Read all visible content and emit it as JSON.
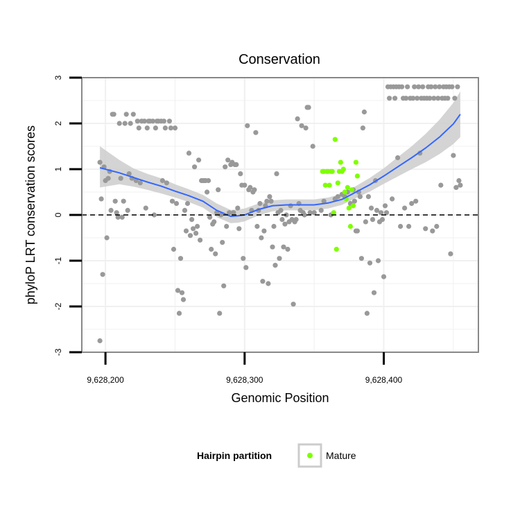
{
  "chart_data": {
    "type": "scatter",
    "title": "Conservation",
    "xlabel": "Genomic Position",
    "ylabel": "phyloP LRT conservation scores",
    "xlim": [
      9628183,
      9628468
    ],
    "ylim": [
      -3,
      3
    ],
    "x_ticks": [
      9628200,
      9628300,
      9628400
    ],
    "x_tick_labels": [
      "9,628,200",
      "9,628,300",
      "9,628,400"
    ],
    "y_ticks": [
      -3,
      -2,
      -1,
      0,
      1,
      2,
      3
    ],
    "y_tick_labels": [
      "-3",
      "-2",
      "-1",
      "0",
      "1",
      "2",
      "3"
    ],
    "reference_line": {
      "y": 0,
      "style": "dashed"
    },
    "grid": true,
    "legend": {
      "title": "Hairpin partition",
      "entries": [
        "Mature"
      ],
      "placement": "bottom"
    },
    "colors": {
      "other_points": "#999999",
      "mature_points": "#7fff00",
      "smooth_line": "#3366ff",
      "confidence_band": "#cccccc",
      "panel_background": "#ffffff",
      "gridline": "#f0f0f0",
      "frame": "#888888"
    },
    "series": [
      {
        "points": [
          [
            9628196,
            -2.75
          ],
          [
            9628196,
            1.15
          ],
          [
            9628197,
            0.35
          ],
          [
            9628198,
            -1.3
          ],
          [
            9628199,
            1.05
          ],
          [
            9628200,
            0.75
          ],
          [
            9628201,
            -0.5
          ],
          [
            9628202,
            0.8
          ],
          [
            9628203,
            0.95
          ],
          [
            9628204,
            0.1
          ],
          [
            9628205,
            2.2
          ],
          [
            9628206,
            2.2
          ],
          [
            9628207,
            0.3
          ],
          [
            9628208,
            0.05
          ],
          [
            9628209,
            -0.05
          ],
          [
            9628210,
            2.0
          ],
          [
            9628211,
            0.8
          ],
          [
            9628212,
            -0.05
          ],
          [
            9628213,
            0.3
          ],
          [
            9628214,
            2.0
          ],
          [
            9628215,
            2.2
          ],
          [
            9628216,
            0.1
          ],
          [
            9628217,
            0.9
          ],
          [
            9628218,
            2.0
          ],
          [
            9628219,
            0.8
          ],
          [
            9628220,
            2.2
          ],
          [
            9628222,
            0.75
          ],
          [
            9628223,
            2.05
          ],
          [
            9628224,
            1.9
          ],
          [
            9628225,
            0.7
          ],
          [
            9628226,
            2.05
          ],
          [
            9628228,
            2.05
          ],
          [
            9628229,
            0.15
          ],
          [
            9628230,
            1.9
          ],
          [
            9628231,
            2.05
          ],
          [
            9628232,
            2.05
          ],
          [
            9628234,
            2.05
          ],
          [
            9628235,
            0.0
          ],
          [
            9628236,
            1.9
          ],
          [
            9628237,
            2.05
          ],
          [
            9628238,
            2.05
          ],
          [
            9628240,
            2.05
          ],
          [
            9628241,
            0.75
          ],
          [
            9628242,
            2.05
          ],
          [
            9628243,
            1.9
          ],
          [
            9628244,
            0.7
          ],
          [
            9628246,
            2.05
          ],
          [
            9628247,
            1.9
          ],
          [
            9628248,
            0.3
          ],
          [
            9628249,
            -0.75
          ],
          [
            9628250,
            1.9
          ],
          [
            9628251,
            0.25
          ],
          [
            9628252,
            -1.65
          ],
          [
            9628253,
            -2.15
          ],
          [
            9628254,
            -0.95
          ],
          [
            9628255,
            -1.7
          ],
          [
            9628256,
            -1.85
          ],
          [
            9628257,
            0.1
          ],
          [
            9628258,
            -0.35
          ],
          [
            9628259,
            0.25
          ],
          [
            9628260,
            1.35
          ],
          [
            9628261,
            -0.45
          ],
          [
            9628262,
            -0.1
          ],
          [
            9628263,
            -0.3
          ],
          [
            9628264,
            1.05
          ],
          [
            9628265,
            -0.4
          ],
          [
            9628266,
            -0.25
          ],
          [
            9628267,
            1.2
          ],
          [
            9628268,
            -0.55
          ],
          [
            9628269,
            0.75
          ],
          [
            9628270,
            0.75
          ],
          [
            9628271,
            0.75
          ],
          [
            9628272,
            0.75
          ],
          [
            9628273,
            0.5
          ],
          [
            9628274,
            0.75
          ],
          [
            9628275,
            -0.05
          ],
          [
            9628276,
            -0.75
          ],
          [
            9628277,
            -0.2
          ],
          [
            9628278,
            -0.15
          ],
          [
            9628279,
            -0.85
          ],
          [
            9628280,
            0.05
          ],
          [
            9628281,
            0.55
          ],
          [
            9628282,
            -2.15
          ],
          [
            9628283,
            0.0
          ],
          [
            9628284,
            -0.6
          ],
          [
            9628285,
            -1.55
          ],
          [
            9628286,
            1.05
          ],
          [
            9628287,
            -0.25
          ],
          [
            9628288,
            1.2
          ],
          [
            9628289,
            0.05
          ],
          [
            9628290,
            1.1
          ],
          [
            9628291,
            1.15
          ],
          [
            9628292,
            0.05
          ],
          [
            9628293,
            1.1
          ],
          [
            9628294,
            1.1
          ],
          [
            9628295,
            0.15
          ],
          [
            9628296,
            -0.3
          ],
          [
            9628297,
            0.9
          ],
          [
            9628298,
            0.65
          ],
          [
            9628299,
            -0.95
          ],
          [
            9628300,
            0.65
          ],
          [
            9628301,
            -1.15
          ],
          [
            9628302,
            1.95
          ],
          [
            9628303,
            0.55
          ],
          [
            9628304,
            0.6
          ],
          [
            9628305,
            0.1
          ],
          [
            9628306,
            0.5
          ],
          [
            9628307,
            0.55
          ],
          [
            9628308,
            1.8
          ],
          [
            9628309,
            -0.25
          ],
          [
            9628310,
            0.1
          ],
          [
            9628311,
            0.25
          ],
          [
            9628312,
            -0.5
          ],
          [
            9628313,
            -1.45
          ],
          [
            9628314,
            -0.35
          ],
          [
            9628315,
            0.2
          ],
          [
            9628316,
            0.3
          ],
          [
            9628317,
            -1.5
          ],
          [
            9628318,
            0.4
          ],
          [
            9628319,
            0.3
          ],
          [
            9628320,
            -0.7
          ],
          [
            9628321,
            -0.25
          ],
          [
            9628322,
            -1.1
          ],
          [
            9628323,
            0.9
          ],
          [
            9628324,
            0.05
          ],
          [
            9628325,
            -0.95
          ],
          [
            9628326,
            0.1
          ],
          [
            9628327,
            -0.1
          ],
          [
            9628328,
            -0.7
          ],
          [
            9628329,
            -0.2
          ],
          [
            9628330,
            0.0
          ],
          [
            9628331,
            -0.75
          ],
          [
            9628332,
            -0.15
          ],
          [
            9628333,
            0.2
          ],
          [
            9628334,
            -0.1
          ],
          [
            9628335,
            -1.95
          ],
          [
            9628336,
            -0.15
          ],
          [
            9628337,
            -0.1
          ],
          [
            9628338,
            2.1
          ],
          [
            9628339,
            0.25
          ],
          [
            9628340,
            0.1
          ],
          [
            9628341,
            1.95
          ],
          [
            9628342,
            0.05
          ],
          [
            9628343,
            0.0
          ],
          [
            9628344,
            1.9
          ],
          [
            9628345,
            2.35
          ],
          [
            9628346,
            2.35
          ],
          [
            9628347,
            0.05
          ],
          [
            9628349,
            1.5
          ],
          [
            9628350,
            0.05
          ],
          [
            9628355,
            0.1
          ],
          [
            9628357,
            0.3
          ],
          [
            9628362,
            0.0
          ],
          [
            9628365,
            0.35
          ],
          [
            9628367,
            0.4
          ],
          [
            9628370,
            0.45
          ],
          [
            9628372,
            0.4
          ],
          [
            9628374,
            0.5
          ],
          [
            9628376,
            0.25
          ],
          [
            9628378,
            0.55
          ],
          [
            9628379,
            0.3
          ],
          [
            9628380,
            -0.35
          ],
          [
            9628381,
            -0.35
          ],
          [
            9628382,
            0.5
          ],
          [
            9628383,
            0.4
          ],
          [
            9628384,
            -0.95
          ],
          [
            9628385,
            1.9
          ],
          [
            9628386,
            2.25
          ],
          [
            9628387,
            -0.15
          ],
          [
            9628388,
            -2.15
          ],
          [
            9628389,
            0.4
          ],
          [
            9628390,
            -1.05
          ],
          [
            9628391,
            0.15
          ],
          [
            9628392,
            -0.1
          ],
          [
            9628393,
            -1.7
          ],
          [
            9628394,
            0.75
          ],
          [
            9628395,
            0.1
          ],
          [
            9628396,
            -1.0
          ],
          [
            9628397,
            -0.15
          ],
          [
            9628398,
            0.05
          ],
          [
            9628399,
            -0.1
          ],
          [
            9628400,
            -1.35
          ],
          [
            9628401,
            0.2
          ],
          [
            9628402,
            0.05
          ],
          [
            9628403,
            2.8
          ],
          [
            9628404,
            2.55
          ],
          [
            9628405,
            2.8
          ],
          [
            9628406,
            0.35
          ],
          [
            9628407,
            2.8
          ],
          [
            9628408,
            2.55
          ],
          [
            9628409,
            2.8
          ],
          [
            9628410,
            1.25
          ],
          [
            9628411,
            2.8
          ],
          [
            9628412,
            -0.25
          ],
          [
            9628413,
            2.8
          ],
          [
            9628414,
            2.55
          ],
          [
            9628415,
            0.15
          ],
          [
            9628416,
            2.55
          ],
          [
            9628417,
            2.8
          ],
          [
            9628418,
            -0.25
          ],
          [
            9628419,
            2.55
          ],
          [
            9628420,
            0.25
          ],
          [
            9628421,
            2.55
          ],
          [
            9628422,
            2.8
          ],
          [
            9628423,
            0.3
          ],
          [
            9628424,
            2.55
          ],
          [
            9628425,
            2.8
          ],
          [
            9628426,
            1.35
          ],
          [
            9628427,
            2.55
          ],
          [
            9628428,
            2.8
          ],
          [
            9628429,
            2.55
          ],
          [
            9628430,
            -0.3
          ],
          [
            9628431,
            2.55
          ],
          [
            9628432,
            2.8
          ],
          [
            9628433,
            2.55
          ],
          [
            9628434,
            2.8
          ],
          [
            9628435,
            -0.35
          ],
          [
            9628436,
            2.55
          ],
          [
            9628437,
            2.8
          ],
          [
            9628438,
            -0.25
          ],
          [
            9628439,
            2.55
          ],
          [
            9628440,
            2.8
          ],
          [
            9628441,
            0.65
          ],
          [
            9628442,
            2.55
          ],
          [
            9628443,
            2.8
          ],
          [
            9628444,
            2.55
          ],
          [
            9628445,
            2.8
          ],
          [
            9628446,
            2.55
          ],
          [
            9628447,
            2.8
          ],
          [
            9628448,
            -0.85
          ],
          [
            9628449,
            2.8
          ],
          [
            9628450,
            1.3
          ],
          [
            9628451,
            2.55
          ],
          [
            9628452,
            0.6
          ],
          [
            9628453,
            2.8
          ],
          [
            9628454,
            0.75
          ],
          [
            9628455,
            0.65
          ]
        ]
      },
      {
        "name": "Mature",
        "points": [
          [
            9628356,
            0.95
          ],
          [
            9628357,
            0.95
          ],
          [
            9628358,
            0.65
          ],
          [
            9628359,
            0.95
          ],
          [
            9628360,
            0.95
          ],
          [
            9628361,
            0.65
          ],
          [
            9628362,
            0.95
          ],
          [
            9628363,
            0.95
          ],
          [
            9628364,
            0.05
          ],
          [
            9628365,
            1.65
          ],
          [
            9628366,
            -0.75
          ],
          [
            9628367,
            0.7
          ],
          [
            9628368,
            0.95
          ],
          [
            9628369,
            1.15
          ],
          [
            9628370,
            0.95
          ],
          [
            9628371,
            1.0
          ],
          [
            9628372,
            0.5
          ],
          [
            9628373,
            0.35
          ],
          [
            9628374,
            0.6
          ],
          [
            9628375,
            0.15
          ],
          [
            9628376,
            -0.25
          ],
          [
            9628377,
            0.55
          ],
          [
            9628378,
            0.2
          ],
          [
            9628380,
            1.15
          ],
          [
            9628381,
            0.85
          ]
        ]
      }
    ],
    "smooth": {
      "x": [
        9628196,
        9628210,
        9628220,
        9628230,
        9628240,
        9628250,
        9628260,
        9628270,
        9628280,
        9628290,
        9628295,
        9628300,
        9628310,
        9628320,
        9628330,
        9628340,
        9628350,
        9628360,
        9628370,
        9628380,
        9628390,
        9628400,
        9628410,
        9628420,
        9628430,
        9628440,
        9628450,
        9628455
      ],
      "y": [
        1.03,
        0.92,
        0.82,
        0.72,
        0.63,
        0.52,
        0.42,
        0.3,
        0.1,
        -0.03,
        -0.02,
        0.0,
        0.12,
        0.2,
        0.22,
        0.22,
        0.22,
        0.26,
        0.34,
        0.5,
        0.66,
        0.85,
        1.05,
        1.25,
        1.46,
        1.7,
        1.99,
        2.2
      ],
      "lower": [
        0.6,
        0.67,
        0.62,
        0.55,
        0.47,
        0.38,
        0.28,
        0.16,
        -0.05,
        -0.18,
        -0.17,
        -0.14,
        -0.01,
        0.08,
        0.1,
        0.1,
        0.1,
        0.14,
        0.22,
        0.37,
        0.51,
        0.68,
        0.84,
        1.0,
        1.15,
        1.33,
        1.55,
        1.7
      ],
      "upper": [
        1.5,
        1.2,
        1.02,
        0.9,
        0.8,
        0.67,
        0.56,
        0.44,
        0.25,
        0.11,
        0.12,
        0.14,
        0.25,
        0.32,
        0.34,
        0.34,
        0.34,
        0.38,
        0.46,
        0.63,
        0.81,
        1.02,
        1.26,
        1.5,
        1.77,
        2.08,
        2.45,
        2.7
      ]
    }
  }
}
